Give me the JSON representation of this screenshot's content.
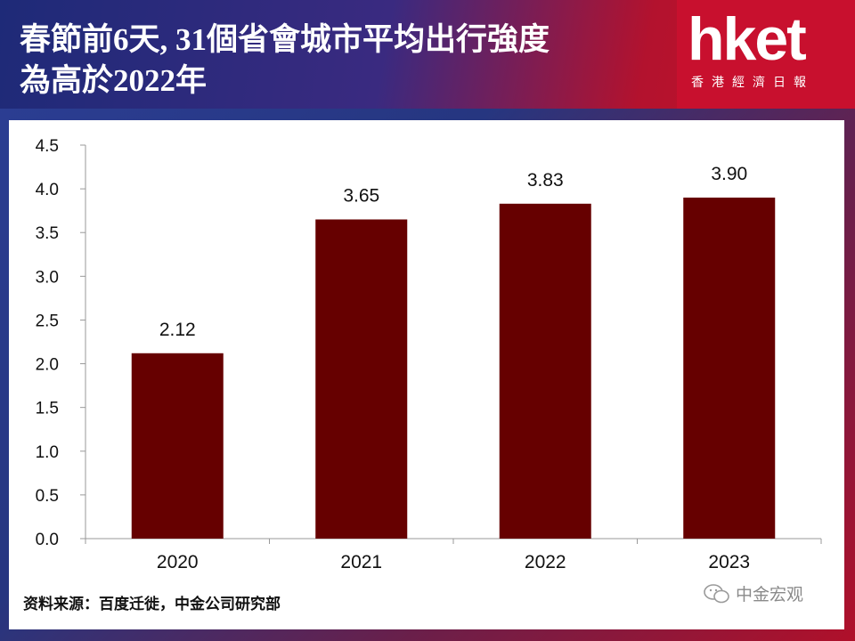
{
  "header": {
    "title_line1": "春節前6天, 31個省會城市平均出行強度",
    "title_line2": "為高於2022年",
    "logo": "hket",
    "logo_sub": "香港經濟日報"
  },
  "source": "资料来源：百度迁徙，中金公司研究部",
  "watermark": "中金宏观",
  "colors": {
    "bar": "#660000",
    "axis": "#999999"
  },
  "chart_data": {
    "type": "bar",
    "categories": [
      "2020",
      "2021",
      "2022",
      "2023"
    ],
    "values": [
      2.12,
      3.65,
      3.83,
      3.9
    ],
    "value_labels": [
      "2.12",
      "3.65",
      "3.83",
      "3.90"
    ],
    "ylim": [
      0,
      4.5
    ],
    "yticks": [
      "0.0",
      "0.5",
      "1.0",
      "1.5",
      "2.0",
      "2.5",
      "3.0",
      "3.5",
      "4.0",
      "4.5"
    ],
    "title": "",
    "xlabel": "",
    "ylabel": "",
    "grid": false,
    "legend": "none"
  }
}
